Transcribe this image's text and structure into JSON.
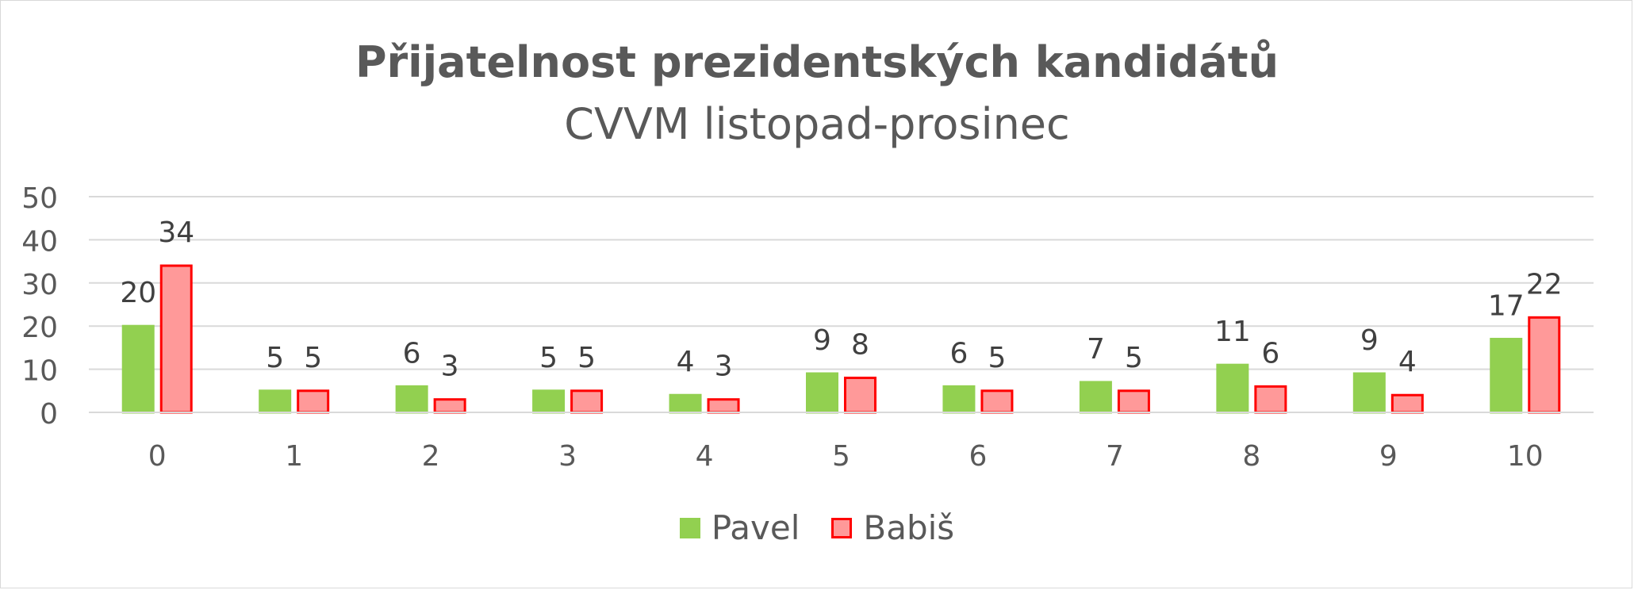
{
  "chart_data": {
    "type": "bar",
    "title": "Přijatelnost prezidentských kandidátů",
    "subtitle": "CVVM listopad-prosinec",
    "xlabel": "",
    "ylabel": "",
    "categories": [
      "0",
      "1",
      "2",
      "3",
      "4",
      "5",
      "6",
      "7",
      "8",
      "9",
      "10"
    ],
    "ylim": [
      0,
      50
    ],
    "yticks": [
      "0",
      "10",
      "20",
      "30",
      "40",
      "50"
    ],
    "grid": true,
    "legend_position": "bottom",
    "series": [
      {
        "name": "Pavel",
        "color": "#92d050",
        "border": "#92d050",
        "values": [
          20,
          5,
          6,
          5,
          4,
          9,
          6,
          7,
          11,
          9,
          17
        ],
        "labels": [
          "20",
          "5",
          "6",
          "5",
          "4",
          "9",
          "6",
          "7",
          "11",
          "9",
          "17"
        ]
      },
      {
        "name": "Babiš",
        "color": "#ff9999",
        "border": "#ff0000",
        "values": [
          34,
          5,
          3,
          5,
          3,
          8,
          5,
          5,
          6,
          4,
          22
        ],
        "labels": [
          "34",
          "5",
          "3",
          "5",
          "3",
          "8",
          "5",
          "5",
          "6",
          "4",
          "22"
        ]
      }
    ]
  }
}
